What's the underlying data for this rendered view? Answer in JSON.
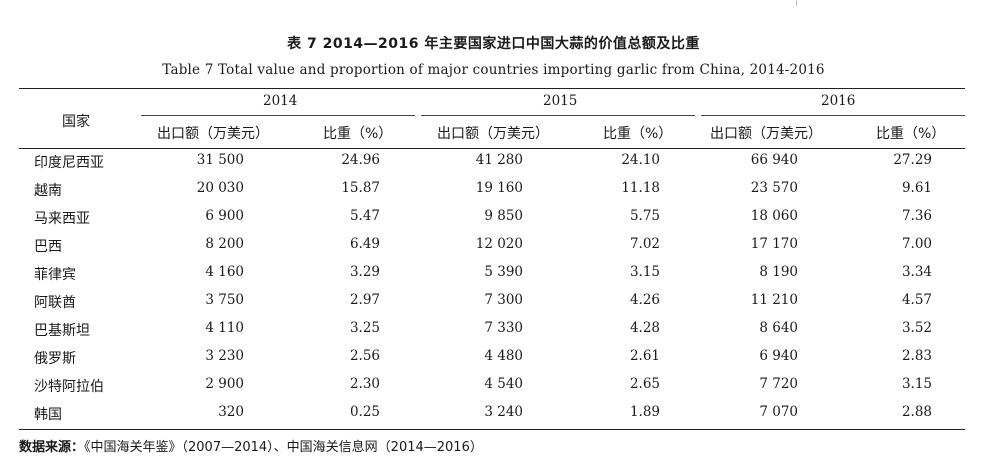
{
  "title_cn": "表 7   2014—2016 年主要国家进口中国大蒜的价值总额及比重",
  "title_en": "Table 7  Total value and proportion of major countries importing garlic from China, 2014-2016",
  "header": {
    "country": "国家",
    "years": [
      "2014",
      "2015",
      "2016"
    ],
    "value_label": "出口额（万美元）",
    "share_label": "比重（%）"
  },
  "rows": [
    {
      "country": "印度尼西亚",
      "v2014": "31 500",
      "s2014": "24.96",
      "v2015": "41 280",
      "s2015": "24.10",
      "v2016": "66 940",
      "s2016": "27.29"
    },
    {
      "country": "越南",
      "v2014": "20 030",
      "s2014": "15.87",
      "v2015": "19 160",
      "s2015": "11.18",
      "v2016": "23 570",
      "s2016": "9.61"
    },
    {
      "country": "马来西亚",
      "v2014": "6 900",
      "s2014": "5.47",
      "v2015": "9 850",
      "s2015": "5.75",
      "v2016": "18 060",
      "s2016": "7.36"
    },
    {
      "country": "巴西",
      "v2014": "8 200",
      "s2014": "6.49",
      "v2015": "12 020",
      "s2015": "7.02",
      "v2016": "17 170",
      "s2016": "7.00"
    },
    {
      "country": "菲律宾",
      "v2014": "4 160",
      "s2014": "3.29",
      "v2015": "5 390",
      "s2015": "3.15",
      "v2016": "8 190",
      "s2016": "3.34"
    },
    {
      "country": "阿联酋",
      "v2014": "3 750",
      "s2014": "2.97",
      "v2015": "7 300",
      "s2015": "4.26",
      "v2016": "11 210",
      "s2016": "4.57"
    },
    {
      "country": "巴基斯坦",
      "v2014": "4 110",
      "s2014": "3.25",
      "v2015": "7 330",
      "s2015": "4.28",
      "v2016": "8 640",
      "s2016": "3.52"
    },
    {
      "country": "俄罗斯",
      "v2014": "3 230",
      "s2014": "2.56",
      "v2015": "4 480",
      "s2015": "2.61",
      "v2016": "6 940",
      "s2016": "2.83"
    },
    {
      "country": "沙特阿拉伯",
      "v2014": "2 900",
      "s2014": "2.30",
      "v2015": "4 540",
      "s2015": "2.65",
      "v2016": "7 720",
      "s2016": "3.15"
    },
    {
      "country": "韩国",
      "v2014": "320",
      "s2014": "0.25",
      "v2015": "3 240",
      "s2015": "1.89",
      "v2016": "7 070",
      "s2016": "2.88"
    }
  ],
  "source": {
    "label": "数据来源：",
    "text": "《中国海关年鉴》（2007—2014）、中国海关信息网（2014—2016）"
  }
}
